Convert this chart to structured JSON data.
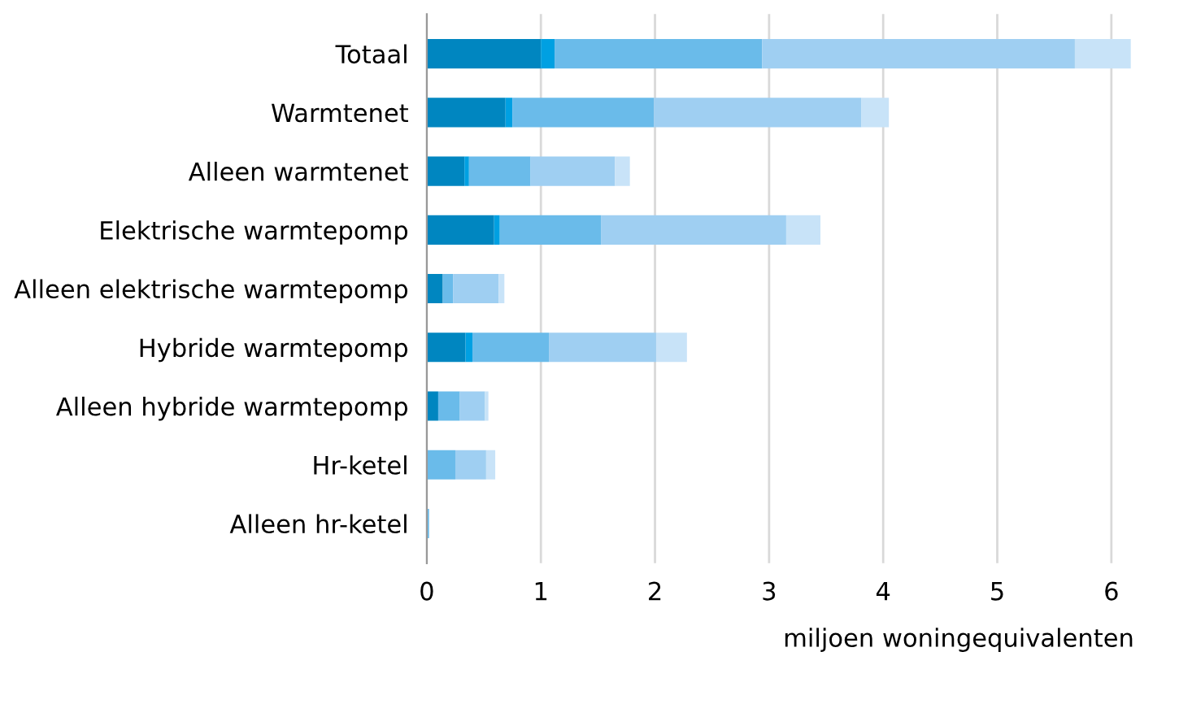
{
  "chart_data": {
    "type": "bar",
    "orientation": "horizontal",
    "stacked": true,
    "xlabel": "miljoen woningequivalenten",
    "categories": [
      "Totaal",
      "Warmtenet",
      "Alleen warmtenet",
      "Elektrische warmtepomp",
      "Alleen elektrische warmtepomp",
      "Hybride warmtepomp",
      "Alleen hybride warmtepomp",
      "Hr-ketel",
      "Alleen hr-ketel"
    ],
    "series": [
      {
        "color": "#0086c0",
        "values": [
          1.0,
          0.69,
          0.33,
          0.59,
          0.14,
          0.34,
          0.1,
          0,
          0
        ]
      },
      {
        "color": "#00a0e2",
        "values": [
          0.12,
          0.06,
          0.04,
          0.05,
          0,
          0.06,
          0,
          0,
          0
        ]
      },
      {
        "color": "#6abbea",
        "values": [
          1.82,
          1.24,
          0.54,
          0.89,
          0.09,
          0.67,
          0.19,
          0.25,
          0.02
        ]
      },
      {
        "color": "#9fcff2",
        "values": [
          2.74,
          1.82,
          0.74,
          1.62,
          0.4,
          0.94,
          0.22,
          0.27,
          0
        ]
      },
      {
        "color": "#c8e3f8",
        "values": [
          0.49,
          0.24,
          0.13,
          0.3,
          0.05,
          0.27,
          0.03,
          0.08,
          0
        ]
      }
    ],
    "xlim": [
      0,
      6.2
    ],
    "xticks": [
      0,
      1,
      2,
      3,
      4,
      5,
      6
    ],
    "grid": "x",
    "legend": false
  }
}
